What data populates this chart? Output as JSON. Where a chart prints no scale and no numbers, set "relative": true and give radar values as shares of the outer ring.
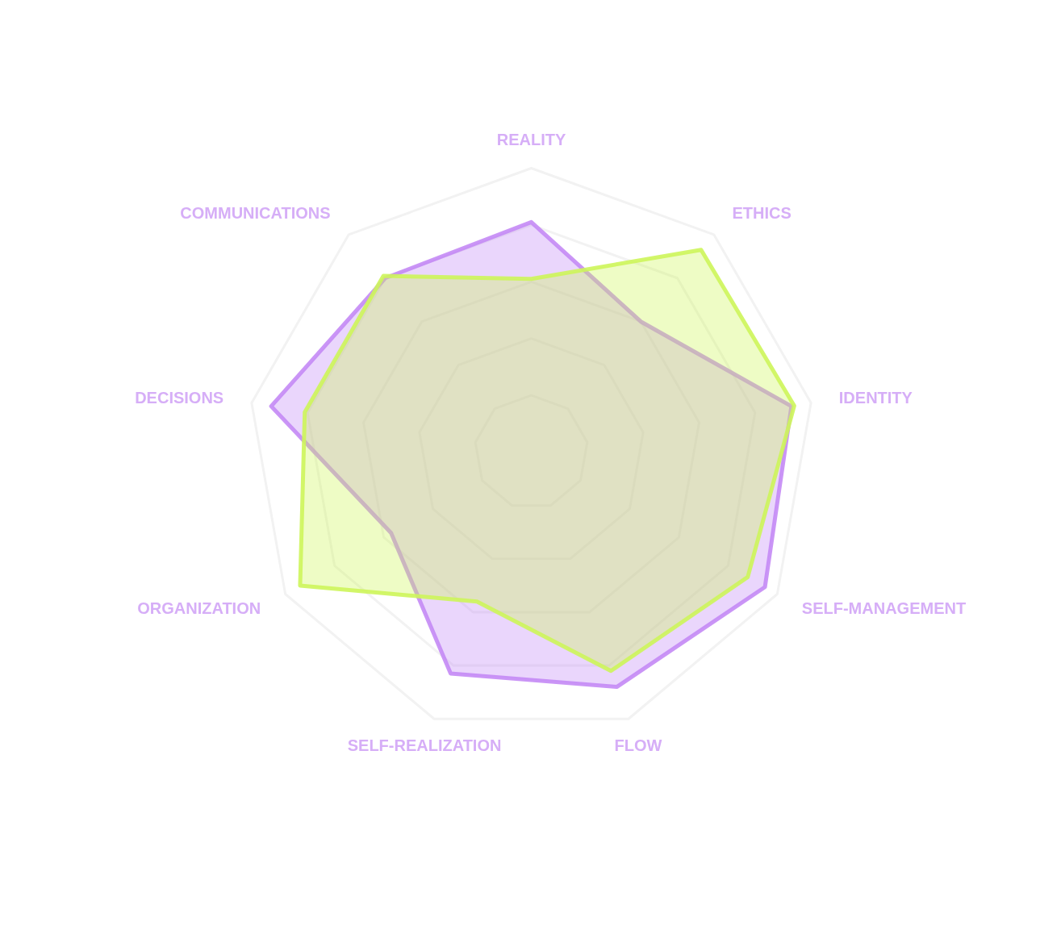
{
  "chart_data": {
    "type": "radar",
    "relative": true,
    "grid": true,
    "categories": [
      "REALITY",
      "ETHICS",
      "IDENTITY",
      "SELF-MANAGEMENT",
      "FLOW",
      "SELF-REALIZATION",
      "ORGANIZATION",
      "DECISIONS",
      "COMMUNICATIONS"
    ],
    "series": [
      {
        "color": "#c48af5",
        "values": [
          0.81,
          0.6,
          0.93,
          0.95,
          0.88,
          0.83,
          0.57,
          0.93,
          0.8
        ]
      },
      {
        "color": "#cdf55a",
        "values": [
          0.61,
          0.93,
          0.94,
          0.88,
          0.82,
          0.56,
          0.94,
          0.81,
          0.81
        ]
      }
    ]
  }
}
